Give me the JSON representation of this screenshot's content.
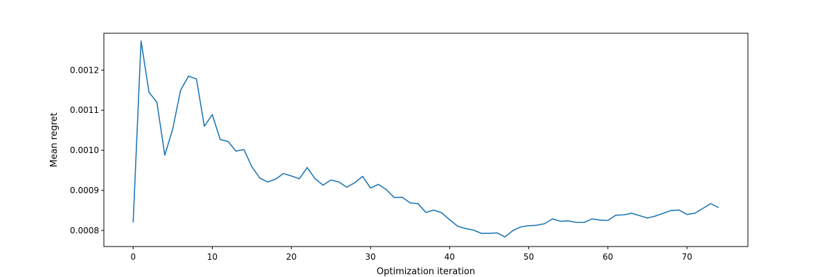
{
  "chart_data": {
    "type": "line",
    "title": "",
    "xlabel": "Optimization iteration",
    "ylabel": "Mean regret",
    "xlim": [
      -3.7,
      77.7
    ],
    "ylim": [
      0.00076,
      0.001292
    ],
    "xticks": [
      0,
      10,
      20,
      30,
      40,
      50,
      60,
      70
    ],
    "yticks": [
      0.0008,
      0.0009,
      0.001,
      0.0011,
      0.0012
    ],
    "ytick_labels": [
      "0.0008",
      "0.0009",
      "0.0010",
      "0.0011",
      "0.0012"
    ],
    "grid": false,
    "color": "#1f77b4",
    "x": [
      0,
      1,
      2,
      3,
      4,
      5,
      6,
      7,
      8,
      9,
      10,
      11,
      12,
      13,
      14,
      15,
      16,
      17,
      18,
      19,
      20,
      21,
      22,
      23,
      24,
      25,
      26,
      27,
      28,
      29,
      30,
      31,
      32,
      33,
      34,
      35,
      36,
      37,
      38,
      39,
      40,
      41,
      42,
      43,
      44,
      45,
      46,
      47,
      48,
      49,
      50,
      51,
      52,
      53,
      54,
      55,
      56,
      57,
      58,
      59,
      60,
      61,
      62,
      63,
      64,
      65,
      66,
      67,
      68,
      69,
      70,
      71,
      72,
      73,
      74
    ],
    "y": [
      0.00082,
      0.001273,
      0.001145,
      0.00112,
      0.000988,
      0.001053,
      0.00115,
      0.001185,
      0.001178,
      0.00106,
      0.001089,
      0.001027,
      0.001022,
      0.000998,
      0.001002,
      0.000959,
      0.000931,
      0.000921,
      0.000928,
      0.000942,
      0.000936,
      0.000929,
      0.000957,
      0.000929,
      0.000913,
      0.000926,
      0.000921,
      0.000908,
      0.000919,
      0.000935,
      0.000906,
      0.000915,
      0.000902,
      0.000882,
      0.000883,
      0.000869,
      0.000867,
      0.000845,
      0.000851,
      0.000844,
      0.000827,
      0.000811,
      0.000805,
      0.000801,
      0.000793,
      0.000793,
      0.000794,
      0.000784,
      0.0008,
      0.000809,
      0.000812,
      0.000813,
      0.000817,
      0.000829,
      0.000823,
      0.000824,
      0.00082,
      0.00082,
      0.000829,
      0.000826,
      0.000825,
      0.000838,
      0.000839,
      0.000843,
      0.000837,
      0.000831,
      0.000836,
      0.000843,
      0.00085,
      0.000851,
      0.00084,
      0.000843,
      0.000855,
      0.000867,
      0.000857
    ]
  }
}
